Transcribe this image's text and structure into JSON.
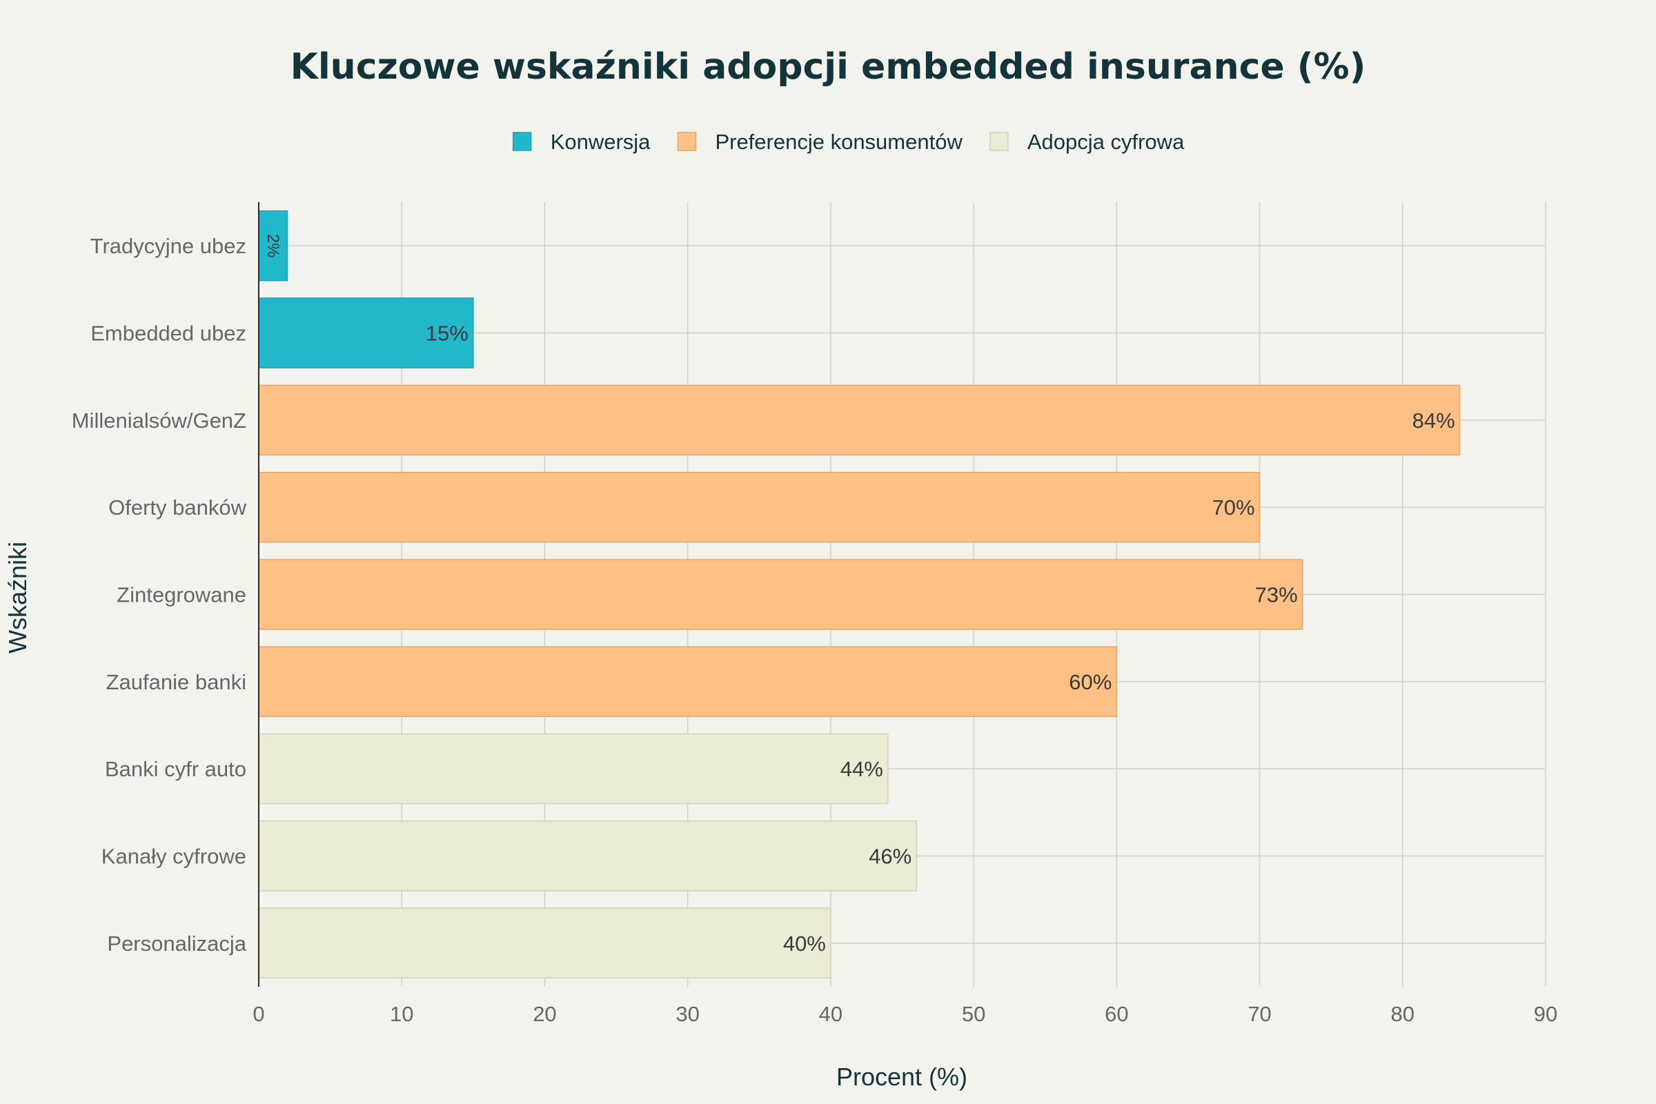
{
  "chart_data": {
    "type": "bar",
    "orientation": "horizontal",
    "title": "Kluczowe wskaźniki adopcji embedded insurance (%)",
    "xlabel": "Procent (%)",
    "ylabel": "Wskaźniki",
    "xlim": [
      0,
      90
    ],
    "xticks": [
      0,
      10,
      20,
      30,
      40,
      50,
      60,
      70,
      80,
      90
    ],
    "grid": true,
    "legend_position": "top-center",
    "legend": [
      {
        "name": "Konwersja",
        "color": "#21b8cc"
      },
      {
        "name": "Preferencje konsumentów",
        "color": "#ffc085"
      },
      {
        "name": "Adopcja cyfrowa",
        "color": "#ecebd5"
      }
    ],
    "bars": [
      {
        "category": "Tradycyjne ubez",
        "value": 2,
        "label": "2%",
        "group": "Konwersja"
      },
      {
        "category": "Embedded ubez",
        "value": 15,
        "label": "15%",
        "group": "Konwersja"
      },
      {
        "category": "Millenialsów/GenZ",
        "value": 84,
        "label": "84%",
        "group": "Preferencje konsumentów"
      },
      {
        "category": "Oferty banków",
        "value": 70,
        "label": "70%",
        "group": "Preferencje konsumentów"
      },
      {
        "category": "Zintegrowane",
        "value": 73,
        "label": "73%",
        "group": "Preferencje konsumentów"
      },
      {
        "category": "Zaufanie banki",
        "value": 60,
        "label": "60%",
        "group": "Preferencje konsumentów"
      },
      {
        "category": "Banki cyfr auto",
        "value": 44,
        "label": "44%",
        "group": "Adopcja cyfrowa"
      },
      {
        "category": "Kanały cyfrowe",
        "value": 46,
        "label": "46%",
        "group": "Adopcja cyfrowa"
      },
      {
        "category": "Personalizacja",
        "value": 40,
        "label": "40%",
        "group": "Adopcja cyfrowa"
      }
    ]
  }
}
